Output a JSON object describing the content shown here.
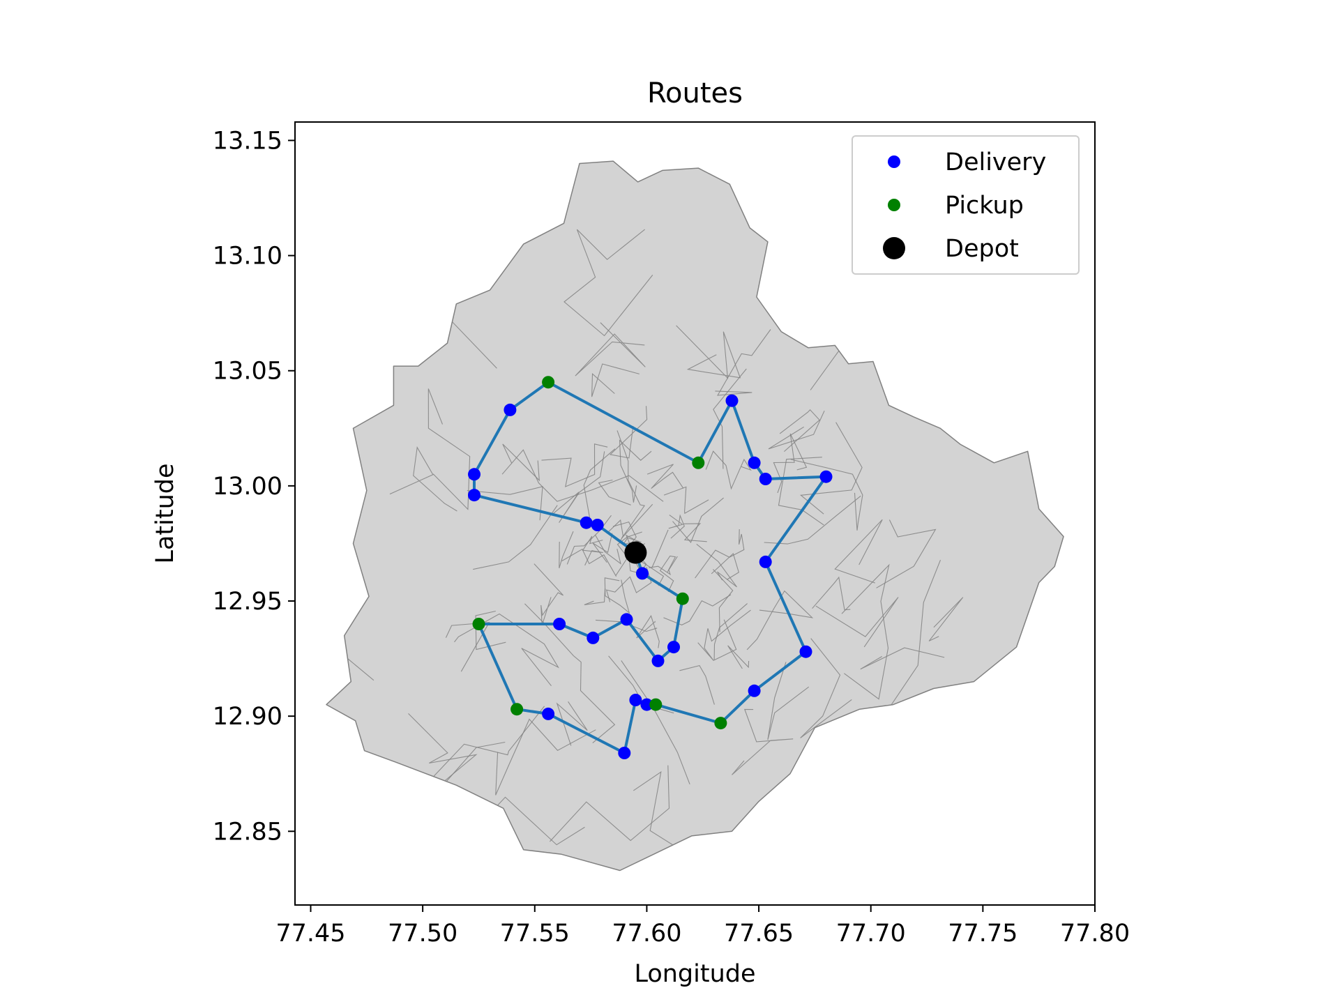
{
  "chart_data": {
    "type": "scatter",
    "title": "Routes",
    "xlabel": "Longitude",
    "ylabel": "Latitude",
    "xlim": [
      77.443,
      77.8
    ],
    "ylim": [
      12.818,
      13.158
    ],
    "xticks": [
      77.45,
      77.5,
      77.55,
      77.6,
      77.65,
      77.7,
      77.75,
      77.8
    ],
    "xtick_labels": [
      "77.45",
      "77.50",
      "77.55",
      "77.60",
      "77.65",
      "77.70",
      "77.75",
      "77.80"
    ],
    "yticks": [
      12.85,
      12.9,
      12.95,
      13.0,
      13.05,
      13.1,
      13.15
    ],
    "ytick_labels": [
      "12.85",
      "12.90",
      "12.95",
      "13.00",
      "13.05",
      "13.10",
      "13.15"
    ],
    "grid": false,
    "legend_position": "top-right",
    "colors": {
      "delivery": "#0000ff",
      "pickup": "#008000",
      "depot": "#000000",
      "route": "#1f77b4",
      "map_fill": "#d3d3d3",
      "map_edge": "#808080"
    },
    "series": [
      {
        "name": "Delivery",
        "marker": "circle",
        "color": "#0000ff",
        "points": [
          [
            77.539,
            13.033
          ],
          [
            77.523,
            13.005
          ],
          [
            77.523,
            12.996
          ],
          [
            77.573,
            12.984
          ],
          [
            77.578,
            12.983
          ],
          [
            77.598,
            12.962
          ],
          [
            77.561,
            12.94
          ],
          [
            77.576,
            12.934
          ],
          [
            77.591,
            12.942
          ],
          [
            77.605,
            12.924
          ],
          [
            77.612,
            12.93
          ],
          [
            77.595,
            12.907
          ],
          [
            77.6,
            12.905
          ],
          [
            77.556,
            12.901
          ],
          [
            77.59,
            12.884
          ],
          [
            77.648,
            12.911
          ],
          [
            77.671,
            12.928
          ],
          [
            77.653,
            12.967
          ],
          [
            77.68,
            13.004
          ],
          [
            77.653,
            13.003
          ],
          [
            77.648,
            13.01
          ],
          [
            77.638,
            13.037
          ]
        ]
      },
      {
        "name": "Pickup",
        "marker": "circle",
        "color": "#008000",
        "points": [
          [
            77.556,
            13.045
          ],
          [
            77.623,
            13.01
          ],
          [
            77.616,
            12.951
          ],
          [
            77.525,
            12.94
          ],
          [
            77.542,
            12.903
          ],
          [
            77.604,
            12.905
          ],
          [
            77.633,
            12.897
          ]
        ]
      },
      {
        "name": "Depot",
        "marker": "circle",
        "color": "#000000",
        "points": [
          [
            77.595,
            12.971
          ]
        ]
      }
    ],
    "route": [
      [
        77.595,
        12.971
      ],
      [
        77.578,
        12.983
      ],
      [
        77.573,
        12.984
      ],
      [
        77.523,
        12.996
      ],
      [
        77.523,
        13.005
      ],
      [
        77.539,
        13.033
      ],
      [
        77.556,
        13.045
      ],
      [
        77.623,
        13.01
      ],
      [
        77.638,
        13.037
      ],
      [
        77.648,
        13.01
      ],
      [
        77.653,
        13.003
      ],
      [
        77.68,
        13.004
      ],
      [
        77.653,
        12.967
      ],
      [
        77.671,
        12.928
      ],
      [
        77.648,
        12.911
      ],
      [
        77.633,
        12.897
      ],
      [
        77.604,
        12.905
      ],
      [
        77.6,
        12.905
      ],
      [
        77.595,
        12.907
      ],
      [
        77.59,
        12.884
      ],
      [
        77.556,
        12.901
      ],
      [
        77.542,
        12.903
      ],
      [
        77.525,
        12.94
      ],
      [
        77.561,
        12.94
      ],
      [
        77.576,
        12.934
      ],
      [
        77.591,
        12.942
      ],
      [
        77.605,
        12.924
      ],
      [
        77.612,
        12.93
      ],
      [
        77.616,
        12.951
      ],
      [
        77.598,
        12.962
      ],
      [
        77.595,
        12.971
      ]
    ],
    "region_outline": [
      [
        77.457,
        12.905
      ],
      [
        77.468,
        12.915
      ],
      [
        77.465,
        12.935
      ],
      [
        77.476,
        12.952
      ],
      [
        77.469,
        12.975
      ],
      [
        77.475,
        12.998
      ],
      [
        77.469,
        13.025
      ],
      [
        77.487,
        13.035
      ],
      [
        77.487,
        13.052
      ],
      [
        77.498,
        13.052
      ],
      [
        77.511,
        13.062
      ],
      [
        77.515,
        13.079
      ],
      [
        77.53,
        13.085
      ],
      [
        77.545,
        13.105
      ],
      [
        77.563,
        13.114
      ],
      [
        77.57,
        13.14
      ],
      [
        77.585,
        13.141
      ],
      [
        77.596,
        13.132
      ],
      [
        77.607,
        13.137
      ],
      [
        77.623,
        13.138
      ],
      [
        77.637,
        13.131
      ],
      [
        77.646,
        13.112
      ],
      [
        77.654,
        13.106
      ],
      [
        77.649,
        13.082
      ],
      [
        77.66,
        13.067
      ],
      [
        77.672,
        13.06
      ],
      [
        77.684,
        13.061
      ],
      [
        77.69,
        13.053
      ],
      [
        77.701,
        13.054
      ],
      [
        77.708,
        13.035
      ],
      [
        77.719,
        13.03
      ],
      [
        77.731,
        13.025
      ],
      [
        77.74,
        13.018
      ],
      [
        77.755,
        13.01
      ],
      [
        77.77,
        13.015
      ],
      [
        77.775,
        12.99
      ],
      [
        77.786,
        12.978
      ],
      [
        77.782,
        12.965
      ],
      [
        77.775,
        12.958
      ],
      [
        77.765,
        12.93
      ],
      [
        77.746,
        12.915
      ],
      [
        77.728,
        12.912
      ],
      [
        77.71,
        12.905
      ],
      [
        77.695,
        12.903
      ],
      [
        77.675,
        12.895
      ],
      [
        77.664,
        12.875
      ],
      [
        77.65,
        12.863
      ],
      [
        77.638,
        12.85
      ],
      [
        77.62,
        12.848
      ],
      [
        77.603,
        12.84
      ],
      [
        77.588,
        12.833
      ],
      [
        77.562,
        12.84
      ],
      [
        77.545,
        12.842
      ],
      [
        77.536,
        12.86
      ],
      [
        77.515,
        12.87
      ],
      [
        77.488,
        12.88
      ],
      [
        77.474,
        12.885
      ],
      [
        77.47,
        12.898
      ]
    ]
  }
}
